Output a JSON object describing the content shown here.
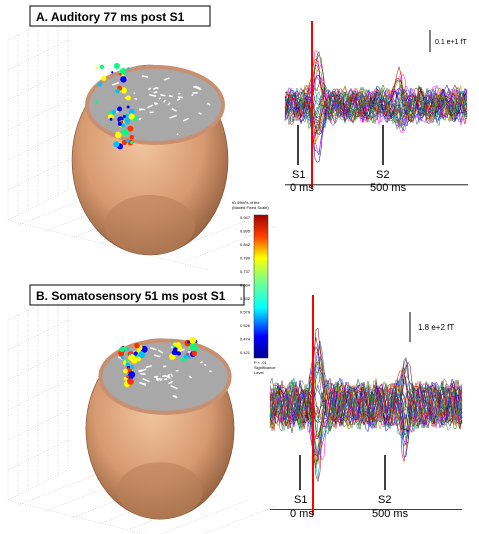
{
  "panels": [
    {
      "title": "A.  Auditory 77 ms post S1",
      "scale": "0.1 e+1 fT",
      "s1": "S1",
      "s1_time": "0 ms",
      "s2": "S2",
      "s2_time": "500 ms"
    },
    {
      "title": "B.  Somatosensory 51 ms post S1",
      "scale": "1.8 e+2 fT",
      "s1": "S1",
      "s1_time": "0 ms",
      "s2": "S2",
      "s2_time": "500 ms"
    }
  ],
  "colorbar": {
    "caption": [
      "ID 95th% of the",
      "(Maxed Fixed Scale)"
    ],
    "ticks": [
      "0.947",
      "0.895",
      "0.842",
      "0.789",
      "0.737",
      "0.684",
      "0.632",
      "0.579",
      "0.526",
      "0.474",
      "0.421"
    ],
    "footer": [
      "P < .01",
      "Significance",
      "Level"
    ]
  }
}
